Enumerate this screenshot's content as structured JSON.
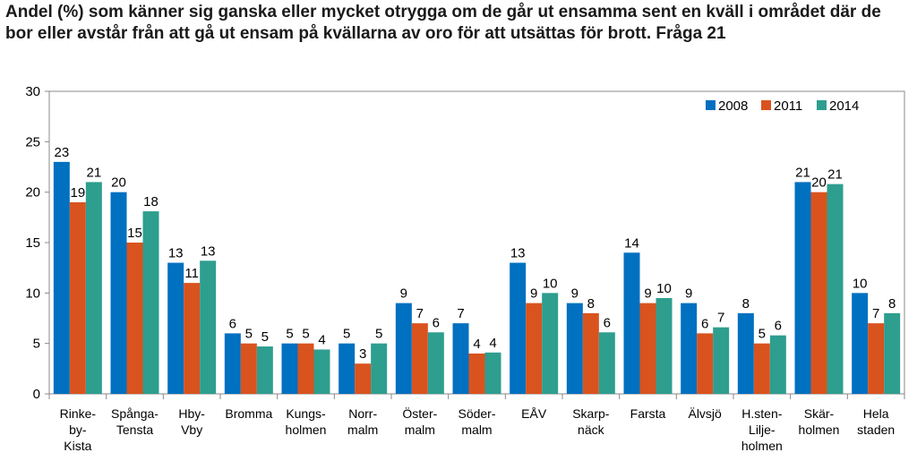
{
  "chart_data": {
    "type": "bar",
    "title": "Andel (%) som känner sig ganska eller mycket otrygga om de går ut ensamma sent en kväll i området där de bor eller avstår från att gå ut ensam på kvällarna av oro för att utsättas för brott. Fråga 21",
    "xlabel": "",
    "ylabel": "",
    "ylim": [
      0,
      30
    ],
    "yticks": [
      0,
      5,
      10,
      15,
      20,
      25,
      30
    ],
    "grid": false,
    "legend_position": "top-right",
    "categories": [
      "Rinke-\nby-\nKista",
      "Spånga-\nTensta",
      "Hby-\nVby",
      "Bromma",
      "Kungs-\nholmen",
      "Norr-\nmalm",
      "Öster-\nmalm",
      "Söder-\nmalm",
      "EÅV",
      "Skarp-\nnäck",
      "Farsta",
      "Älvsjö",
      "H.sten-\nLilje-\nholmen",
      "Skär-\nholmen",
      "Hela\nstaden"
    ],
    "series": [
      {
        "name": "2008",
        "color": "#0070C0",
        "values": [
          23,
          20,
          13,
          6,
          5,
          5,
          9,
          7,
          13,
          9,
          14,
          9,
          8,
          21,
          10
        ],
        "labels": [
          "23",
          "20",
          "13",
          "6",
          "5",
          "5",
          "9",
          "7",
          "13",
          "9",
          "14",
          "9",
          "8",
          "21",
          "10"
        ]
      },
      {
        "name": "2011",
        "color": "#D9531E",
        "values": [
          19,
          15,
          11,
          5,
          5,
          3,
          7,
          4,
          9,
          8,
          9,
          6,
          5,
          20,
          7
        ],
        "labels": [
          "19",
          "15",
          "11",
          "5",
          "5",
          "3",
          "7",
          "4",
          "9",
          "8",
          "9",
          "6",
          "5",
          "20",
          "7"
        ]
      },
      {
        "name": "2014",
        "color": "#2E9E8F",
        "values": [
          21,
          18.1,
          13.2,
          4.7,
          4.4,
          5,
          6.1,
          4.1,
          10,
          6.1,
          9.5,
          6.6,
          5.8,
          20.8,
          8
        ],
        "labels": [
          "21",
          "18",
          "13",
          "5",
          "4",
          "5",
          "6",
          "4",
          "10",
          "6",
          "10",
          "7",
          "6",
          "21",
          "8"
        ]
      }
    ]
  }
}
